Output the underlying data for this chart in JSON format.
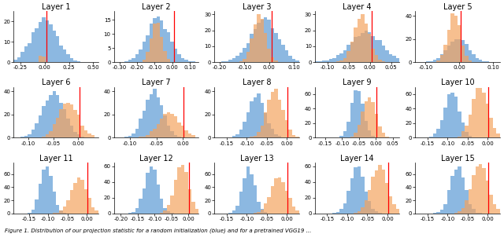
{
  "nrows": 3,
  "ncols": 5,
  "color_random": "#5B9BD5",
  "color_trained": "#F4A460",
  "alpha": 0.7,
  "red_line_color": "red",
  "figure_caption": "Figure 1. Distribution of our projection statistic for a random initialization (blue) and for a pretrained VGG19 ...",
  "layer_params": [
    {
      "name": "Layer 1",
      "xlim": [
        -0.32,
        0.55
      ],
      "ylim": [
        0,
        25
      ],
      "xticks": [
        -0.25,
        0.0,
        0.25,
        0.5
      ],
      "rand_mean": 0.0,
      "rand_std": 0.13,
      "rand_scale": 22,
      "train_mean": -0.03,
      "train_std": 0.012,
      "train_scale": 3,
      "redline": 0.02
    },
    {
      "name": "Layer 2",
      "xlim": [
        -0.33,
        0.15
      ],
      "ylim": [
        0,
        18
      ],
      "xticks": [
        -0.3,
        -0.2,
        -0.1,
        0.0,
        0.1
      ],
      "rand_mean": -0.08,
      "rand_std": 0.065,
      "rand_scale": 16,
      "train_mean": -0.09,
      "train_std": 0.03,
      "train_scale": 14,
      "redline": 0.01
    },
    {
      "name": "Layer 3",
      "xlim": [
        -0.22,
        0.12
      ],
      "ylim": [
        0,
        32
      ],
      "xticks": [
        -0.2,
        -0.1,
        0.0,
        0.1
      ],
      "rand_mean": -0.02,
      "rand_std": 0.055,
      "rand_scale": 28,
      "train_mean": -0.04,
      "train_std": 0.025,
      "train_scale": 30,
      "redline": 0.01
    },
    {
      "name": "Layer 4",
      "xlim": [
        -0.13,
        0.07
      ],
      "ylim": [
        0,
        32
      ],
      "xticks": [
        -0.1,
        -0.05,
        0.0,
        0.05
      ],
      "rand_mean": -0.01,
      "rand_std": 0.038,
      "rand_scale": 20,
      "train_mean": -0.02,
      "train_std": 0.018,
      "train_scale": 30,
      "redline": 0.005
    },
    {
      "name": "Layer 5",
      "xlim": [
        -0.13,
        0.12
      ],
      "ylim": [
        0,
        44
      ],
      "xticks": [
        -0.1,
        0.0,
        0.1
      ],
      "rand_mean": -0.005,
      "rand_std": 0.032,
      "rand_scale": 20,
      "train_mean": -0.015,
      "train_std": 0.018,
      "train_scale": 42,
      "redline": 0.003
    },
    {
      "name": "Layer 6",
      "xlim": [
        -0.13,
        0.04
      ],
      "ylim": [
        0,
        44
      ],
      "xticks": [
        -0.1,
        -0.05,
        0.0
      ],
      "rand_mean": -0.05,
      "rand_std": 0.022,
      "rand_scale": 40,
      "train_mean": -0.02,
      "train_std": 0.02,
      "train_scale": 30,
      "redline": 0.002
    },
    {
      "name": "Layer 7",
      "xlim": [
        -0.13,
        0.03
      ],
      "ylim": [
        0,
        44
      ],
      "xticks": [
        -0.1,
        -0.05,
        0.0
      ],
      "rand_mean": -0.055,
      "rand_std": 0.018,
      "rand_scale": 42,
      "train_mean": -0.025,
      "train_std": 0.02,
      "train_scale": 22,
      "redline": 0.002
    },
    {
      "name": "Layer 8",
      "xlim": [
        -0.18,
        0.03
      ],
      "ylim": [
        0,
        44
      ],
      "xticks": [
        -0.15,
        -0.1,
        -0.05,
        0.0
      ],
      "rand_mean": -0.075,
      "rand_std": 0.022,
      "rand_scale": 38,
      "train_mean": -0.03,
      "train_std": 0.02,
      "train_scale": 42,
      "redline": 0.002
    },
    {
      "name": "Layer 9",
      "xlim": [
        -0.18,
        0.07
      ],
      "ylim": [
        0,
        70
      ],
      "xticks": [
        -0.15,
        -0.1,
        -0.05,
        0.0,
        0.05
      ],
      "rand_mean": -0.055,
      "rand_std": 0.018,
      "rand_scale": 65,
      "train_mean": -0.02,
      "train_std": 0.02,
      "train_scale": 55,
      "redline": 0.002
    },
    {
      "name": "Layer 10",
      "xlim": [
        -0.18,
        0.03
      ],
      "ylim": [
        0,
        70
      ],
      "xticks": [
        -0.15,
        -0.1,
        -0.05,
        0.0
      ],
      "rand_mean": -0.09,
      "rand_std": 0.018,
      "rand_scale": 62,
      "train_mean": -0.02,
      "train_std": 0.02,
      "train_scale": 68,
      "redline": 0.002
    },
    {
      "name": "Layer 11",
      "xlim": [
        -0.19,
        0.03
      ],
      "ylim": [
        0,
        78
      ],
      "xticks": [
        -0.15,
        -0.1,
        -0.05,
        0.0
      ],
      "rand_mean": -0.105,
      "rand_std": 0.016,
      "rand_scale": 72,
      "train_mean": -0.02,
      "train_std": 0.02,
      "train_scale": 55,
      "redline": 0.002
    },
    {
      "name": "Layer 12",
      "xlim": [
        -0.22,
        0.03
      ],
      "ylim": [
        0,
        65
      ],
      "xticks": [
        -0.2,
        -0.15,
        -0.1,
        -0.05,
        0.0
      ],
      "rand_mean": -0.11,
      "rand_std": 0.02,
      "rand_scale": 60,
      "train_mean": -0.02,
      "train_std": 0.02,
      "train_scale": 62,
      "redline": 0.002
    },
    {
      "name": "Layer 13",
      "xlim": [
        -0.18,
        0.03
      ],
      "ylim": [
        0,
        78
      ],
      "xticks": [
        -0.15,
        -0.1,
        -0.05,
        0.0
      ],
      "rand_mean": -0.095,
      "rand_std": 0.015,
      "rand_scale": 72,
      "train_mean": -0.02,
      "train_std": 0.02,
      "train_scale": 55,
      "redline": 0.002
    },
    {
      "name": "Layer 14",
      "xlim": [
        -0.18,
        0.03
      ],
      "ylim": [
        0,
        65
      ],
      "xticks": [
        -0.15,
        -0.1,
        -0.05,
        0.0
      ],
      "rand_mean": -0.075,
      "rand_std": 0.018,
      "rand_scale": 60,
      "train_mean": -0.02,
      "train_std": 0.02,
      "train_scale": 62,
      "redline": 0.002
    },
    {
      "name": "Layer 15",
      "xlim": [
        -0.18,
        0.03
      ],
      "ylim": [
        0,
        78
      ],
      "xticks": [
        -0.15,
        -0.1,
        -0.05,
        0.0
      ],
      "rand_mean": -0.075,
      "rand_std": 0.018,
      "rand_scale": 72,
      "train_mean": -0.02,
      "train_std": 0.02,
      "train_scale": 75,
      "redline": 0.002
    }
  ],
  "nbins": 25,
  "title_fontsize": 7,
  "tick_fontsize": 5,
  "caption_fontsize": 5.0,
  "figsize": [
    6.4,
    2.98
  ]
}
